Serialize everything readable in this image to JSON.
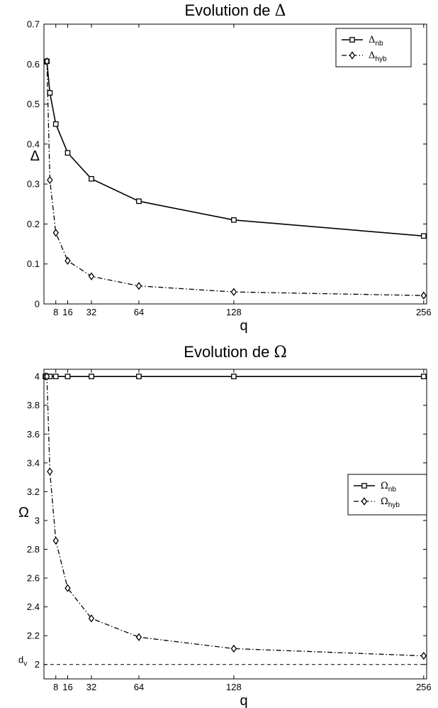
{
  "chart_data": [
    {
      "type": "line",
      "title_prefix": "Evolution de ",
      "title_symbol": "Δ",
      "xlabel": "q",
      "ylabel": "Δ",
      "xlim": [
        0,
        258
      ],
      "ylim": [
        0,
        0.7
      ],
      "xticks": [
        8,
        16,
        32,
        64,
        128,
        256
      ],
      "yticks": [
        0,
        0.1,
        0.2,
        0.3,
        0.4,
        0.5,
        0.6,
        0.7
      ],
      "ytick_labels": [
        "0",
        "0.1",
        "0.2",
        "0.3",
        "0.4",
        "0.5",
        "0.6",
        "0.7"
      ],
      "legend_position": "top-right",
      "reference_line": null,
      "series": [
        {
          "name_main": "Δ",
          "name_sub": "nb",
          "style": "solid",
          "marker": "square",
          "x": [
            2,
            4,
            8,
            16,
            32,
            64,
            128,
            256
          ],
          "y": [
            0.607,
            0.528,
            0.45,
            0.378,
            0.313,
            0.257,
            0.21,
            0.17
          ]
        },
        {
          "name_main": "Δ",
          "name_sub": "hyb",
          "style": "dashdot",
          "marker": "diamond",
          "x": [
            2,
            4,
            8,
            16,
            32,
            64,
            128,
            256
          ],
          "y": [
            0.607,
            0.31,
            0.178,
            0.108,
            0.069,
            0.045,
            0.03,
            0.021
          ]
        }
      ]
    },
    {
      "type": "line",
      "title_prefix": "Evolution de ",
      "title_symbol": "Ω",
      "xlabel": "q",
      "ylabel": "Ω",
      "xlim": [
        0,
        258
      ],
      "ylim": [
        1.9,
        4.05
      ],
      "xticks": [
        8,
        16,
        32,
        64,
        128,
        256
      ],
      "yticks": [
        2,
        2.2,
        2.4,
        2.6,
        2.8,
        3,
        3.2,
        3.4,
        3.6,
        3.8,
        4
      ],
      "ytick_labels": [
        "2",
        "2.2",
        "2.4",
        "2.6",
        "2.8",
        "3",
        "3.2",
        "3.4",
        "3.6",
        "3.8",
        "4"
      ],
      "legend_position": "right",
      "reference_line": {
        "y": 2,
        "style": "dashed",
        "label_main": "d",
        "label_sub": "v"
      },
      "series": [
        {
          "name_main": "Ω",
          "name_sub": "nb",
          "style": "solid",
          "marker": "square",
          "x": [
            1,
            2,
            4,
            8,
            16,
            32,
            64,
            128,
            256
          ],
          "y": [
            4,
            4,
            4,
            4,
            4,
            4,
            4,
            4,
            4
          ]
        },
        {
          "name_main": "Ω",
          "name_sub": "hyb",
          "style": "dashdot",
          "marker": "diamond",
          "x": [
            1,
            2,
            4,
            8,
            16,
            32,
            64,
            128,
            256
          ],
          "y": [
            4,
            4,
            3.34,
            2.86,
            2.53,
            2.32,
            2.19,
            2.11,
            2.06
          ]
        }
      ]
    }
  ]
}
